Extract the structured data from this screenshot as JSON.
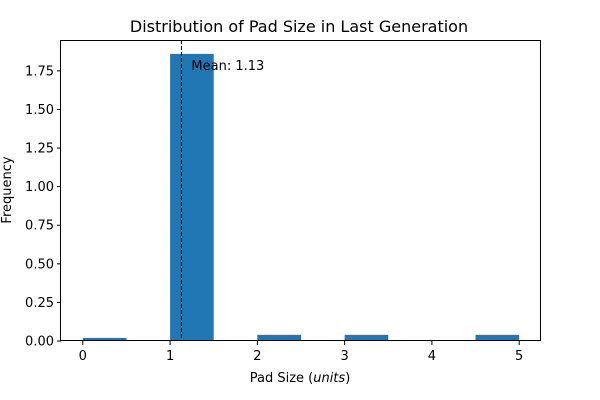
{
  "chart_data": {
    "type": "bar",
    "title": "Distribution of Pad Size in Last Generation",
    "xlabel": "Pad Size (",
    "xlabel_unit": "units",
    "xlabel_suffix": ")",
    "ylabel": "Frequency",
    "xlim": [
      -0.25,
      5.25
    ],
    "ylim": [
      0,
      1.95
    ],
    "x_ticks": [
      0,
      1,
      2,
      3,
      4,
      5
    ],
    "x_tick_labels": [
      "0",
      "1",
      "2",
      "3",
      "4",
      "5"
    ],
    "y_ticks": [
      0.0,
      0.25,
      0.5,
      0.75,
      1.0,
      1.25,
      1.5,
      1.75
    ],
    "y_tick_labels": [
      "0.00",
      "0.25",
      "0.50",
      "0.75",
      "1.00",
      "1.25",
      "1.50",
      "1.75"
    ],
    "bins": [
      {
        "x_start": 0.0,
        "x_end": 0.5,
        "value": 0.02
      },
      {
        "x_start": 1.0,
        "x_end": 1.5,
        "value": 1.86
      },
      {
        "x_start": 2.0,
        "x_end": 2.5,
        "value": 0.04
      },
      {
        "x_start": 3.0,
        "x_end": 3.5,
        "value": 0.04
      },
      {
        "x_start": 4.5,
        "x_end": 5.0,
        "value": 0.04
      }
    ],
    "bar_color": "#1f77b4",
    "mean_value": 1.13,
    "mean_label": "Mean: 1.13",
    "grid": false,
    "legend": "none"
  }
}
